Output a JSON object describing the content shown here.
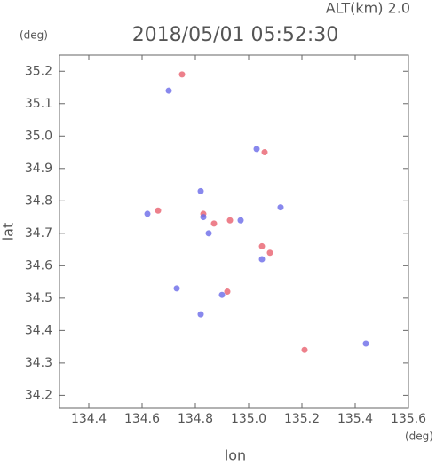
{
  "chart_data": {
    "type": "scatter",
    "title": "2018/05/01 05:52:30",
    "subtitle": "ALT(km) 2.0",
    "y_unit": "(deg)",
    "x_unit": "(deg)",
    "x_label": "lon",
    "y_label": "lat",
    "xlim": [
      134.29,
      135.6
    ],
    "ylim": [
      34.16,
      35.25
    ],
    "xticks": [
      134.4,
      134.6,
      134.8,
      {
        "value": 135,
        "label": "135.0"
      },
      135.2,
      135.4,
      135.6
    ],
    "yticks": [
      34.2,
      34.3,
      34.4,
      34.5,
      34.6,
      34.7,
      34.8,
      34.9,
      {
        "value": 35,
        "label": "35.0"
      },
      35.1,
      35.2
    ],
    "series": [
      {
        "color": "#e8606e",
        "x": [
          135.06,
          134.66,
          134.83,
          134.93,
          135.05,
          135.21,
          134.92,
          134.75,
          134.87,
          135.08
        ],
        "y": [
          34.95,
          34.77,
          34.76,
          34.74,
          34.66,
          34.34,
          34.52,
          35.19,
          34.73,
          34.64
        ]
      },
      {
        "color": "#6a6ae8",
        "x": [
          135.03,
          134.83,
          134.85,
          134.7,
          134.9,
          134.82,
          134.97,
          135.05,
          135.44,
          134.73,
          134.82,
          134.62,
          135.12
        ],
        "y": [
          34.96,
          34.75,
          34.7,
          35.14,
          34.51,
          34.45,
          34.74,
          34.62,
          34.36,
          34.53,
          34.83,
          34.76,
          34.78
        ]
      }
    ]
  }
}
